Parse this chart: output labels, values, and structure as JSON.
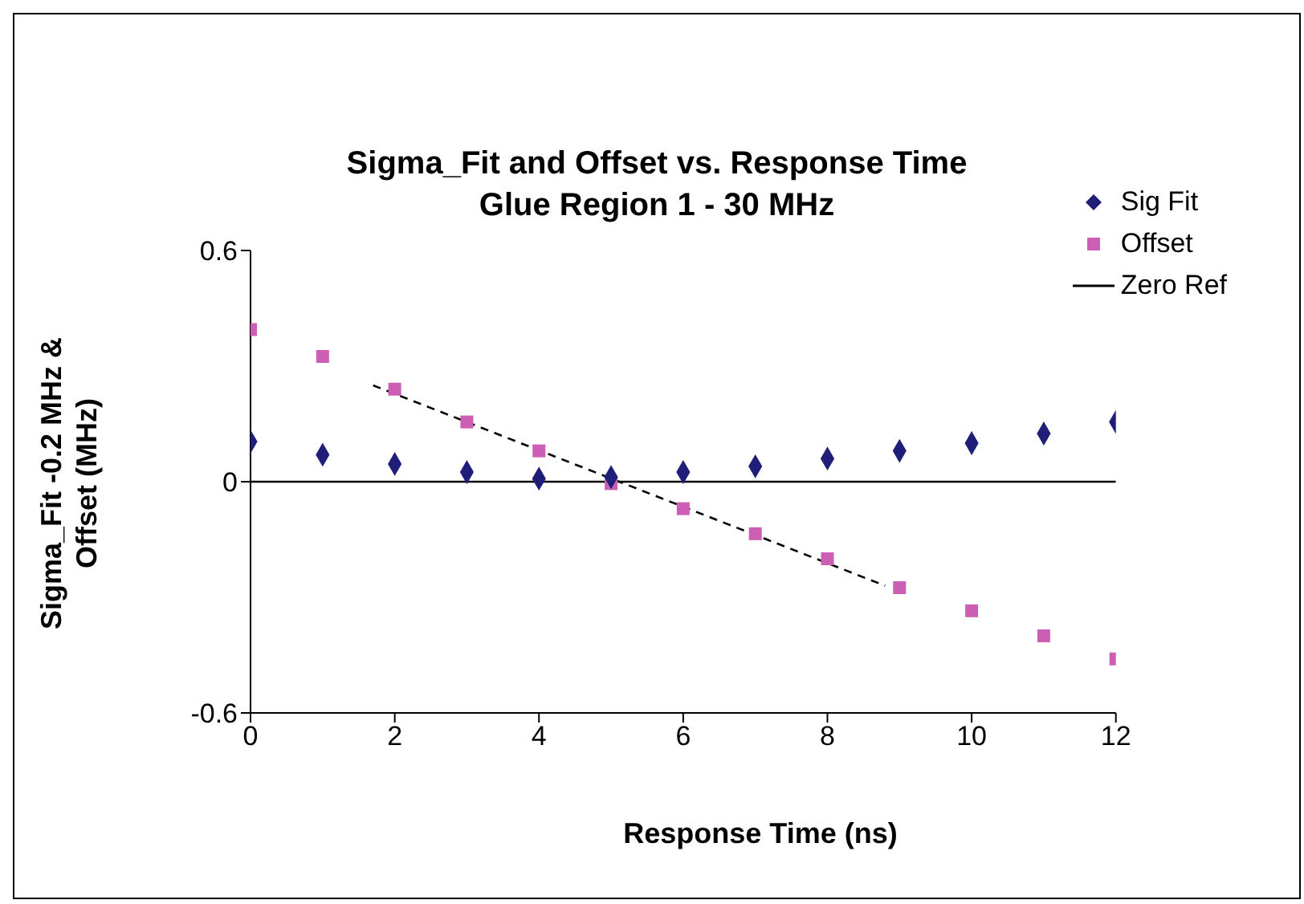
{
  "chart_data": {
    "type": "scatter",
    "title": "Sigma_Fit and Offset vs. Response Time",
    "subtitle": "Glue Region 1 - 30 MHz",
    "xlabel": "Response Time (ns)",
    "ylabel": "Sigma_Fit -0.2 MHz & Offset (MHz)",
    "x": [
      0,
      1,
      2,
      3,
      4,
      5,
      6,
      7,
      8,
      9,
      10,
      11,
      12
    ],
    "series": [
      {
        "name": "Sig Fit",
        "marker": "diamond",
        "color": "#1f1f7a",
        "values": [
          0.104,
          0.07,
          0.046,
          0.025,
          0.008,
          0.012,
          0.025,
          0.04,
          0.06,
          0.08,
          0.1,
          0.125,
          0.155
        ]
      },
      {
        "name": "Offset",
        "marker": "square",
        "color": "#cc5fb4",
        "values": [
          0.395,
          0.325,
          0.24,
          0.155,
          0.08,
          -0.005,
          -0.07,
          -0.135,
          -0.2,
          -0.275,
          -0.335,
          -0.4,
          -0.46
        ]
      },
      {
        "name": "Zero Ref",
        "type": "line",
        "marker": "none",
        "line_style": "solid",
        "color": "#000000",
        "x": [
          0,
          12
        ],
        "values": [
          0,
          0
        ]
      },
      {
        "type": "line",
        "marker": "none",
        "line_style": "dashed",
        "color": "#000000",
        "x": [
          1.7,
          8.8
        ],
        "values": [
          0.25,
          -0.27
        ]
      }
    ],
    "xlim": [
      0,
      12
    ],
    "xticks": [
      0,
      2,
      4,
      6,
      8,
      10,
      12
    ],
    "ylim": [
      -0.6,
      0.6
    ],
    "yticks": [
      -0.6,
      0,
      0.6
    ],
    "grid": false,
    "legend": "top right"
  }
}
